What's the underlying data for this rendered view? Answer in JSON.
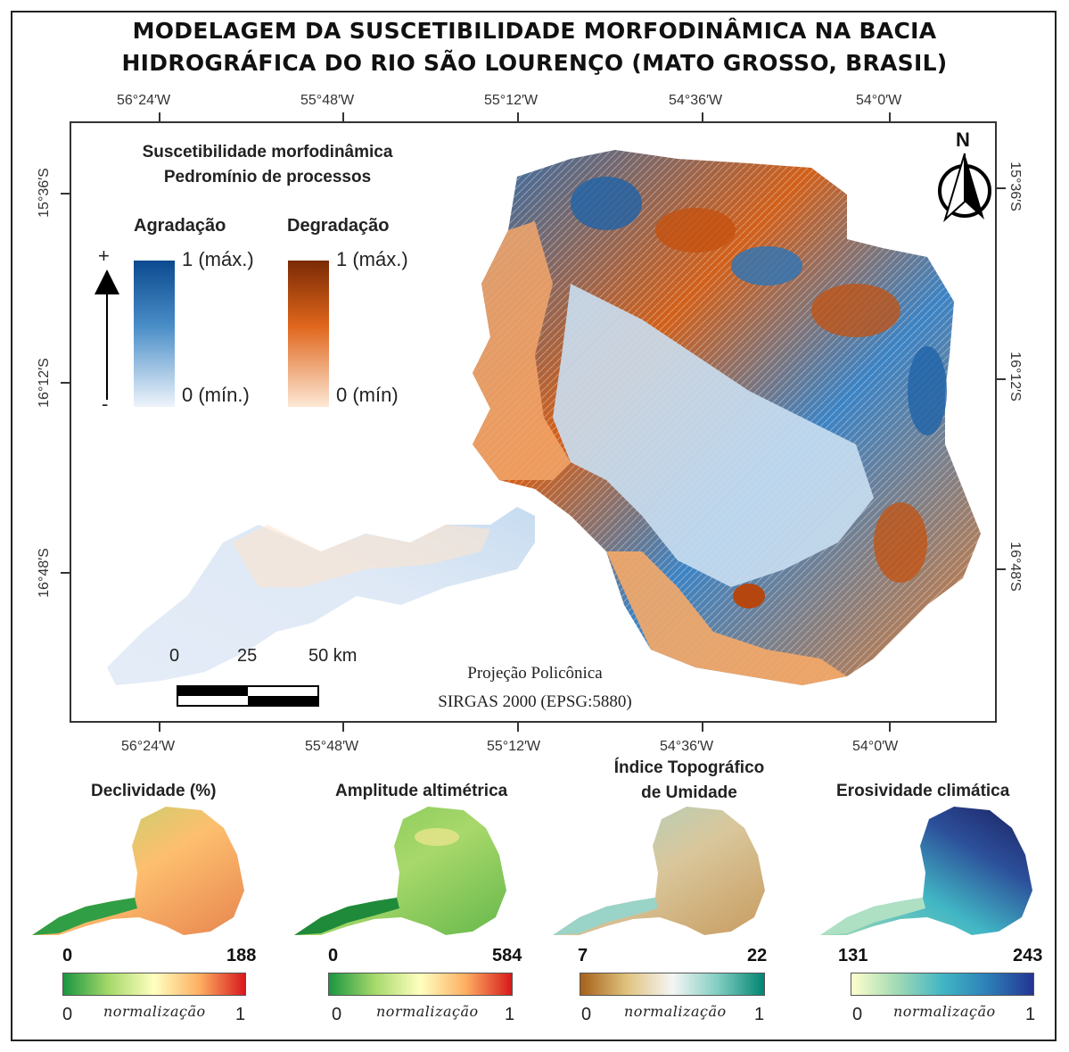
{
  "title": {
    "line1": "MODELAGEM DA SUSCETIBILIDADE MORFODINÂMICA NA BACIA",
    "line2": "HIDROGRÁFICA DO RIO SÃO LOURENÇO (MATO GROSSO, BRASIL)"
  },
  "graticule": {
    "lon_labels": [
      "56°24′W",
      "55°48′W",
      "55°12′W",
      "54°36′W",
      "54°0′W"
    ],
    "lat_labels": [
      "15°36′S",
      "16°12′S",
      "16°48′S"
    ]
  },
  "legend": {
    "title_line1": "Suscetibilidade morfodinâmica",
    "title_line2": "Pedromínio de processos",
    "agradacao": {
      "label": "Agradação",
      "max": "1 (máx.)",
      "min": "0 (mín.)",
      "color_high": "#0b4a8f",
      "color_low": "#eef4fb"
    },
    "degradacao": {
      "label": "Degradação",
      "max": "1 (máx.)",
      "min": "0 (mín)",
      "color_high": "#7a2a04",
      "color_low": "#fde8d6"
    },
    "arrow_plus": "+",
    "arrow_minus": "-"
  },
  "north_arrow": {
    "label": "N"
  },
  "scale_bar": {
    "labels": [
      "0",
      "25",
      "50 km"
    ]
  },
  "projection": {
    "line1": "Projeção Policônica",
    "line2": "SIRGAS 2000 (EPSG:5880)"
  },
  "small_maps": [
    {
      "title": "Declividade (%)",
      "min": "0",
      "max": "188",
      "norm": "normalização",
      "n0": "0",
      "n1": "1",
      "colors": [
        "#1a9641",
        "#a6d96a",
        "#ffffbf",
        "#fdae61",
        "#d7191c"
      ]
    },
    {
      "title": "Amplitude altimétrica",
      "min": "0",
      "max": "584",
      "norm": "normalização",
      "n0": "0",
      "n1": "1",
      "colors": [
        "#1a9641",
        "#a6d96a",
        "#ffffbf",
        "#fdae61",
        "#d7191c"
      ]
    },
    {
      "title": "Índice Topográfico",
      "title2": "de Umidade",
      "min": "7",
      "max": "22",
      "norm": "normalização",
      "n0": "0",
      "n1": "1",
      "colors": [
        "#a6611a",
        "#dfc27d",
        "#f5f5f5",
        "#80cdc1",
        "#018571"
      ]
    },
    {
      "title": "Erosividade climática",
      "min": "131",
      "max": "243",
      "norm": "normalização",
      "n0": "0",
      "n1": "1",
      "colors": [
        "#ffffcc",
        "#a1dab4",
        "#41b6c4",
        "#2c7fb8",
        "#253494"
      ]
    }
  ]
}
